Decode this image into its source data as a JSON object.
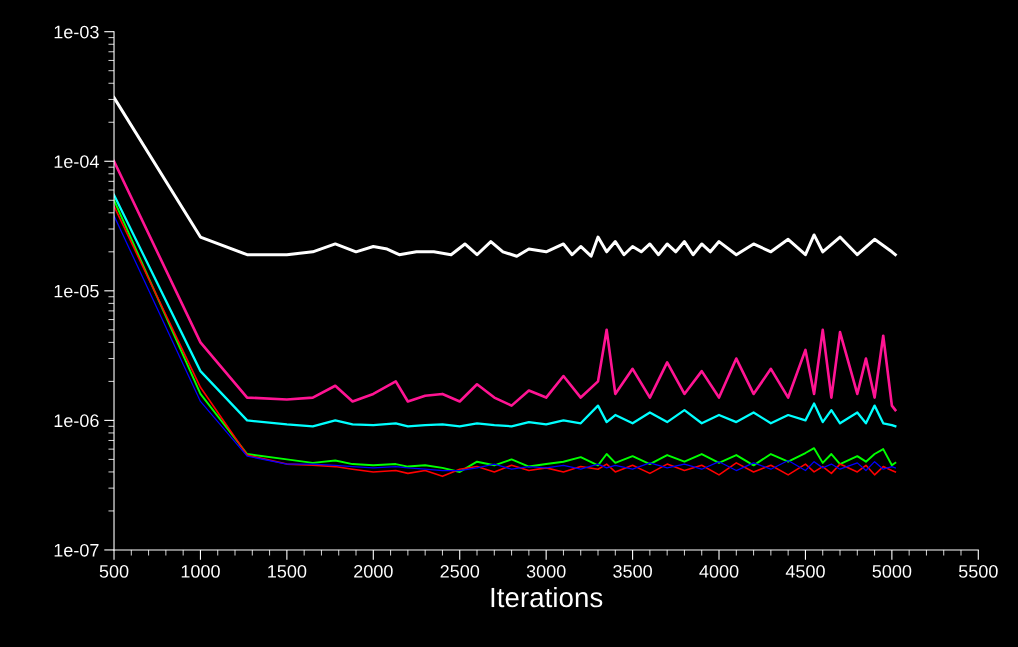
{
  "chart_data": {
    "type": "line",
    "xlabel": "Iterations",
    "log": "y",
    "line_style": "solid",
    "xlim": [
      500,
      5500
    ],
    "xticks": [
      500,
      1000,
      1500,
      2000,
      2500,
      3000,
      3500,
      4000,
      4500,
      5000,
      5500
    ],
    "ylim": [
      1e-07,
      0.001
    ],
    "yticks": [
      {
        "value": 1e-07,
        "label": "1e-07"
      },
      {
        "value": 1e-06,
        "label": "1e-06"
      },
      {
        "value": 1e-05,
        "label": "1e-05"
      },
      {
        "value": 0.0001,
        "label": "1e-04"
      },
      {
        "value": 0.001,
        "label": "1e-03"
      }
    ],
    "x": [
      500,
      1000,
      1270,
      1500,
      1650,
      1780,
      1880,
      2000,
      2130,
      2200,
      2300,
      2400,
      2500,
      2600,
      2700,
      2800,
      2900,
      3000,
      3100,
      3200,
      3300,
      3350,
      3400,
      3500,
      3600,
      3700,
      3800,
      3900,
      4000,
      4100,
      4200,
      4300,
      4400,
      4500,
      4550,
      4600,
      4650,
      4700,
      4800,
      4850,
      4900,
      4950,
      5000,
      5020
    ],
    "series": [
      {
        "color": "#ffffff",
        "x": [
          500,
          1000,
          1270,
          1500,
          1650,
          1780,
          1900,
          2000,
          2080,
          2150,
          2250,
          2350,
          2450,
          2530,
          2600,
          2680,
          2750,
          2830,
          2900,
          3000,
          3100,
          3150,
          3200,
          3260,
          3300,
          3350,
          3400,
          3450,
          3500,
          3550,
          3600,
          3650,
          3700,
          3750,
          3800,
          3850,
          3900,
          3950,
          4000,
          4100,
          4200,
          4300,
          4400,
          4500,
          4550,
          4600,
          4700,
          4800,
          4900,
          5000,
          5020
        ],
        "values": [
          0.00031,
          2.6e-05,
          1.9e-05,
          1.9e-05,
          2e-05,
          2.3e-05,
          2e-05,
          2.2e-05,
          2.1e-05,
          1.9e-05,
          2e-05,
          2e-05,
          1.9e-05,
          2.3e-05,
          1.9e-05,
          2.4e-05,
          2e-05,
          1.85e-05,
          2.1e-05,
          2e-05,
          2.3e-05,
          1.9e-05,
          2.2e-05,
          1.85e-05,
          2.6e-05,
          2e-05,
          2.4e-05,
          1.9e-05,
          2.2e-05,
          2e-05,
          2.3e-05,
          1.9e-05,
          2.3e-05,
          2e-05,
          2.4e-05,
          1.9e-05,
          2.3e-05,
          2e-05,
          2.4e-05,
          1.9e-05,
          2.3e-05,
          2e-05,
          2.5e-05,
          1.9e-05,
          2.7e-05,
          2e-05,
          2.6e-05,
          1.9e-05,
          2.5e-05,
          2e-05,
          1.9e-05
        ]
      },
      {
        "color": "#ff1493",
        "values": [
          0.0001,
          4e-06,
          1.5e-06,
          1.45e-06,
          1.5e-06,
          1.85e-06,
          1.4e-06,
          1.6e-06,
          2e-06,
          1.4e-06,
          1.55e-06,
          1.6e-06,
          1.4e-06,
          1.9e-06,
          1.5e-06,
          1.3e-06,
          1.7e-06,
          1.5e-06,
          2.2e-06,
          1.5e-06,
          2e-06,
          5e-06,
          1.6e-06,
          2.5e-06,
          1.5e-06,
          2.8e-06,
          1.6e-06,
          2.4e-06,
          1.5e-06,
          3e-06,
          1.6e-06,
          2.5e-06,
          1.5e-06,
          3.5e-06,
          1.6e-06,
          5e-06,
          1.5e-06,
          4.8e-06,
          1.6e-06,
          3e-06,
          1.5e-06,
          4.5e-06,
          1.3e-06,
          1.2e-06
        ]
      },
      {
        "color": "#00ffff",
        "values": [
          5.5e-05,
          2.4e-06,
          1e-06,
          9.3e-07,
          9e-07,
          1e-06,
          9.3e-07,
          9.2e-07,
          9.5e-07,
          9e-07,
          9.2e-07,
          9.3e-07,
          9e-07,
          9.5e-07,
          9.2e-07,
          9e-07,
          9.7e-07,
          9.3e-07,
          1e-06,
          9.5e-07,
          1.3e-06,
          9.7e-07,
          1.1e-06,
          9.5e-07,
          1.15e-06,
          9.7e-07,
          1.2e-06,
          9.5e-07,
          1.1e-06,
          9.7e-07,
          1.15e-06,
          9.5e-07,
          1.1e-06,
          1e-06,
          1.35e-06,
          9.7e-07,
          1.2e-06,
          9.5e-07,
          1.15e-06,
          9.5e-07,
          1.3e-06,
          9.5e-07,
          9.2e-07,
          9e-07
        ]
      },
      {
        "color": "#00ff00",
        "values": [
          5e-05,
          1.6e-06,
          5.5e-07,
          5e-07,
          4.7e-07,
          4.9e-07,
          4.6e-07,
          4.5e-07,
          4.6e-07,
          4.4e-07,
          4.5e-07,
          4.3e-07,
          4e-07,
          4.8e-07,
          4.5e-07,
          5e-07,
          4.4e-07,
          4.6e-07,
          4.8e-07,
          5.2e-07,
          4.5e-07,
          5.5e-07,
          4.7e-07,
          5.3e-07,
          4.6e-07,
          5.4e-07,
          4.8e-07,
          5.5e-07,
          4.7e-07,
          5.4e-07,
          4.5e-07,
          5.5e-07,
          4.8e-07,
          5.6e-07,
          6.1e-07,
          4.7e-07,
          5.5e-07,
          4.6e-07,
          5.3e-07,
          4.8e-07,
          5.5e-07,
          6e-07,
          4.5e-07,
          4.7e-07
        ]
      },
      {
        "color": "#ff0000",
        "values": [
          4.5e-05,
          1.8e-06,
          5.4e-07,
          4.6e-07,
          4.5e-07,
          4.4e-07,
          4.2e-07,
          4e-07,
          4.1e-07,
          3.9e-07,
          4.1e-07,
          3.7e-07,
          4.2e-07,
          4.4e-07,
          4e-07,
          4.5e-07,
          4.1e-07,
          4.3e-07,
          4e-07,
          4.4e-07,
          4.2e-07,
          4.6e-07,
          4e-07,
          4.5e-07,
          3.9e-07,
          4.6e-07,
          4.1e-07,
          4.5e-07,
          3.8e-07,
          4.7e-07,
          4e-07,
          4.5e-07,
          3.8e-07,
          4.6e-07,
          4e-07,
          4.4e-07,
          3.9e-07,
          4.6e-07,
          4e-07,
          4.5e-07,
          3.8e-07,
          4.4e-07,
          4.1e-07,
          4e-07
        ]
      },
      {
        "color": "#0000ff",
        "values": [
          3.8e-05,
          1.4e-06,
          5.3e-07,
          4.6e-07,
          4.6e-07,
          4.5e-07,
          4.4e-07,
          4.3e-07,
          4.4e-07,
          4.3e-07,
          4.2e-07,
          4.1e-07,
          4.1e-07,
          4.3e-07,
          4.6e-07,
          4.2e-07,
          4.4e-07,
          4.3e-07,
          4.5e-07,
          4.2e-07,
          4.6e-07,
          4.3e-07,
          4.5e-07,
          4.2e-07,
          4.7e-07,
          4.3e-07,
          4.6e-07,
          4.2e-07,
          4.8e-07,
          4.1e-07,
          4.7e-07,
          4.2e-07,
          4.9e-07,
          4.1e-07,
          4.8e-07,
          4.3e-07,
          4.6e-07,
          4.2e-07,
          4.7e-07,
          4.1e-07,
          4.8e-07,
          4.2e-07,
          4.4e-07,
          4.3e-07
        ]
      }
    ]
  }
}
